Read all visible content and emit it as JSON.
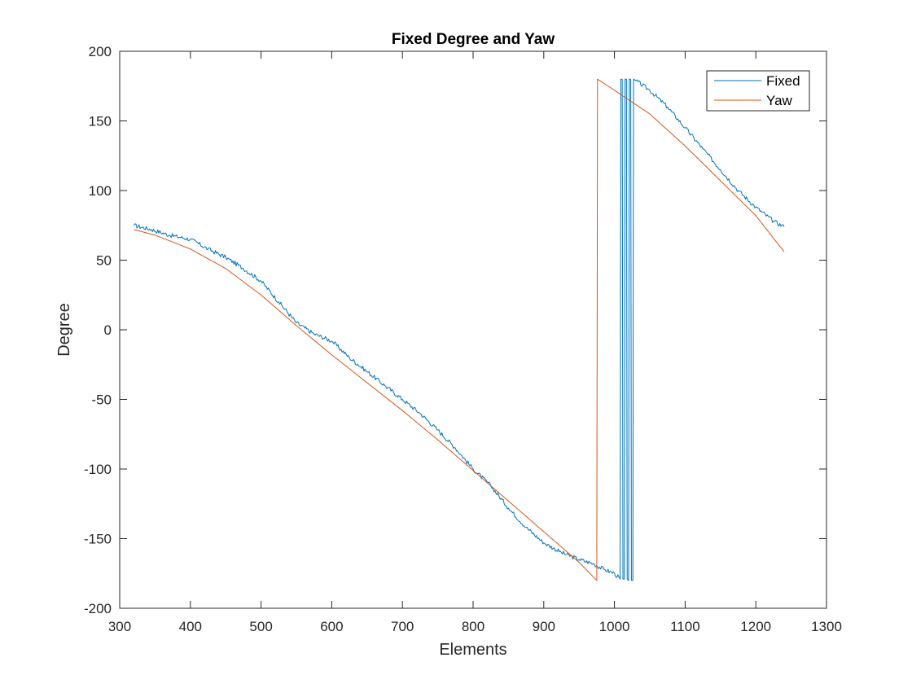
{
  "chart_data": {
    "type": "line",
    "title": "Fixed Degree and Yaw",
    "xlabel": "Elements",
    "ylabel": "Degree",
    "xlim": [
      300,
      1300
    ],
    "ylim": [
      -200,
      200
    ],
    "x_ticks": [
      300,
      400,
      500,
      600,
      700,
      800,
      900,
      1000,
      1100,
      1200,
      1300
    ],
    "y_ticks": [
      -200,
      -150,
      -100,
      -50,
      0,
      50,
      100,
      150,
      200
    ],
    "grid": false,
    "legend_position": "top-right",
    "series": [
      {
        "name": "Fixed",
        "color": "#0072BD",
        "points": [
          [
            320,
            75
          ],
          [
            345,
            72
          ],
          [
            370,
            68
          ],
          [
            400,
            65
          ],
          [
            425,
            58
          ],
          [
            450,
            52
          ],
          [
            475,
            44
          ],
          [
            500,
            35
          ],
          [
            525,
            20
          ],
          [
            550,
            5
          ],
          [
            575,
            -3
          ],
          [
            600,
            -8
          ],
          [
            625,
            -20
          ],
          [
            650,
            -30
          ],
          [
            675,
            -40
          ],
          [
            700,
            -50
          ],
          [
            725,
            -60
          ],
          [
            750,
            -72
          ],
          [
            775,
            -85
          ],
          [
            800,
            -100
          ],
          [
            825,
            -112
          ],
          [
            850,
            -128
          ],
          [
            875,
            -142
          ],
          [
            900,
            -153
          ],
          [
            925,
            -160
          ],
          [
            950,
            -165
          ],
          [
            970,
            -168
          ],
          [
            985,
            -172
          ],
          [
            1000,
            -175
          ],
          [
            1008,
            -179
          ],
          [
            1009,
            180
          ],
          [
            1011,
            180
          ],
          [
            1012,
            -179
          ],
          [
            1014,
            -179
          ],
          [
            1015,
            180
          ],
          [
            1017,
            180
          ],
          [
            1018,
            -179
          ],
          [
            1020,
            -180
          ],
          [
            1021,
            180
          ],
          [
            1023,
            180
          ],
          [
            1024,
            -180
          ],
          [
            1026,
            -180
          ],
          [
            1027,
            180
          ],
          [
            1030,
            179
          ],
          [
            1050,
            172
          ],
          [
            1075,
            160
          ],
          [
            1100,
            145
          ],
          [
            1125,
            130
          ],
          [
            1150,
            115
          ],
          [
            1175,
            100
          ],
          [
            1200,
            88
          ],
          [
            1225,
            78
          ],
          [
            1240,
            74
          ]
        ]
      },
      {
        "name": "Yaw",
        "color": "#D95319",
        "points": [
          [
            320,
            72
          ],
          [
            350,
            68
          ],
          [
            400,
            58
          ],
          [
            450,
            44
          ],
          [
            500,
            25
          ],
          [
            550,
            3
          ],
          [
            600,
            -18
          ],
          [
            650,
            -38
          ],
          [
            700,
            -58
          ],
          [
            750,
            -79
          ],
          [
            800,
            -101
          ],
          [
            850,
            -123
          ],
          [
            900,
            -145
          ],
          [
            950,
            -167
          ],
          [
            975,
            -180
          ],
          [
            976,
            180
          ],
          [
            1000,
            172
          ],
          [
            1050,
            155
          ],
          [
            1100,
            132
          ],
          [
            1150,
            107
          ],
          [
            1200,
            82
          ],
          [
            1240,
            56
          ]
        ]
      }
    ]
  }
}
